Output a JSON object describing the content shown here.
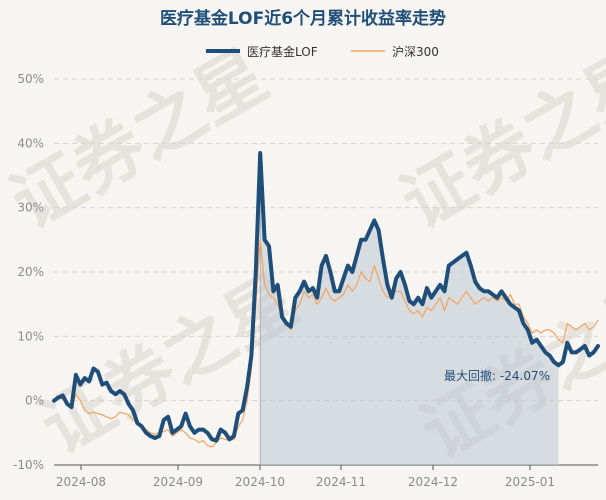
{
  "chart_data": {
    "type": "line",
    "title": "医疗基金LOF近6个月累计收益率走势",
    "legend": {
      "placement": "top-center"
    },
    "x_tick_labels": [
      "2024-08",
      "2024-09",
      "2024-10",
      "2024-11",
      "2024-12",
      "2025-01"
    ],
    "y_ticks": [
      -10,
      0,
      10,
      20,
      30,
      40,
      50
    ],
    "y_tick_labels": [
      "-10%",
      "0%",
      "10%",
      "20%",
      "30%",
      "40%",
      "50%"
    ],
    "ylim": [
      -10,
      50
    ],
    "grid": "horizontal-dashed",
    "series": [
      {
        "name": "医疗基金LOF",
        "color": "#1f4e79",
        "values": [
          0.0,
          0.5,
          0.8,
          -0.5,
          -1.0,
          4.0,
          2.5,
          3.5,
          3.0,
          5.0,
          4.5,
          2.5,
          2.8,
          1.5,
          1.0,
          1.5,
          1.0,
          -0.5,
          -1.5,
          -3.5,
          -4.0,
          -5.0,
          -5.5,
          -5.8,
          -5.5,
          -3.0,
          -2.5,
          -5.0,
          -4.5,
          -4.0,
          -2.0,
          -4.0,
          -5.0,
          -4.5,
          -4.5,
          -5.0,
          -6.0,
          -6.2,
          -4.5,
          -5.0,
          -6.0,
          -5.5,
          -2.0,
          -1.5,
          2.0,
          7.0,
          20.0,
          38.5,
          25.0,
          24.0,
          17.0,
          18.0,
          13.0,
          12.0,
          11.5,
          16.0,
          17.0,
          18.5,
          17.0,
          17.5,
          16.0,
          21.0,
          22.5,
          20.0,
          17.0,
          17.0,
          19.0,
          21.0,
          20.0,
          22.5,
          25.0,
          25.0,
          26.5,
          28.0,
          26.5,
          22.0,
          18.0,
          16.0,
          19.0,
          20.0,
          18.0,
          15.5,
          15.0,
          16.0,
          15.0,
          17.5,
          16.0,
          17.0,
          18.0,
          17.0,
          21.0,
          21.5,
          22.0,
          22.5,
          23.0,
          21.0,
          18.5,
          17.5,
          17.0,
          17.0,
          16.5,
          16.0,
          17.0,
          16.0,
          15.0,
          14.5,
          14.0,
          12.0,
          11.0,
          9.0,
          9.5,
          8.5,
          7.5,
          7.0,
          6.0,
          5.5,
          6.0,
          9.0,
          7.5,
          7.5,
          8.0,
          8.5,
          7.0,
          7.5,
          8.5
        ],
        "max_drawdown_label": "最大回撤: -24.07%"
      },
      {
        "name": "沪深300",
        "color": "#f4a460",
        "values": [
          0.0,
          0.5,
          0.2,
          -0.8,
          -1.2,
          1.0,
          0.0,
          -1.5,
          -2.0,
          -1.8,
          -2.0,
          -2.2,
          -2.5,
          -2.8,
          -2.5,
          -1.8,
          -2.0,
          -2.2,
          -3.0,
          -3.5,
          -4.0,
          -4.5,
          -5.0,
          -5.2,
          -5.0,
          -4.8,
          -4.5,
          -5.5,
          -5.0,
          -4.5,
          -5.0,
          -5.8,
          -6.0,
          -6.5,
          -6.2,
          -7.0,
          -7.2,
          -6.5,
          -5.8,
          -6.0,
          -6.2,
          -6.0,
          -4.0,
          -3.0,
          0.0,
          5.0,
          15.0,
          25.0,
          18.0,
          16.5,
          16.0,
          15.0,
          13.0,
          12.0,
          11.0,
          14.0,
          15.0,
          17.0,
          16.0,
          16.5,
          15.0,
          16.0,
          17.5,
          16.0,
          15.5,
          16.0,
          16.5,
          18.0,
          17.0,
          18.0,
          20.0,
          19.0,
          18.5,
          21.0,
          19.0,
          17.0,
          16.0,
          16.5,
          17.0,
          17.0,
          15.5,
          14.0,
          13.5,
          14.0,
          13.0,
          14.5,
          14.0,
          15.0,
          16.0,
          14.0,
          16.0,
          15.5,
          15.0,
          16.0,
          17.0,
          16.0,
          15.0,
          15.5,
          16.0,
          15.5,
          16.0,
          15.5,
          16.0,
          15.5,
          16.5,
          15.0,
          15.0,
          13.0,
          12.0,
          10.5,
          11.0,
          10.5,
          11.0,
          11.0,
          10.5,
          9.5,
          9.0,
          12.0,
          11.5,
          11.0,
          11.5,
          12.0,
          11.0,
          11.5,
          12.5
        ]
      }
    ],
    "drawdown_start_index": 47,
    "drawdown_end_index": 115,
    "watermark": "证券之星"
  }
}
